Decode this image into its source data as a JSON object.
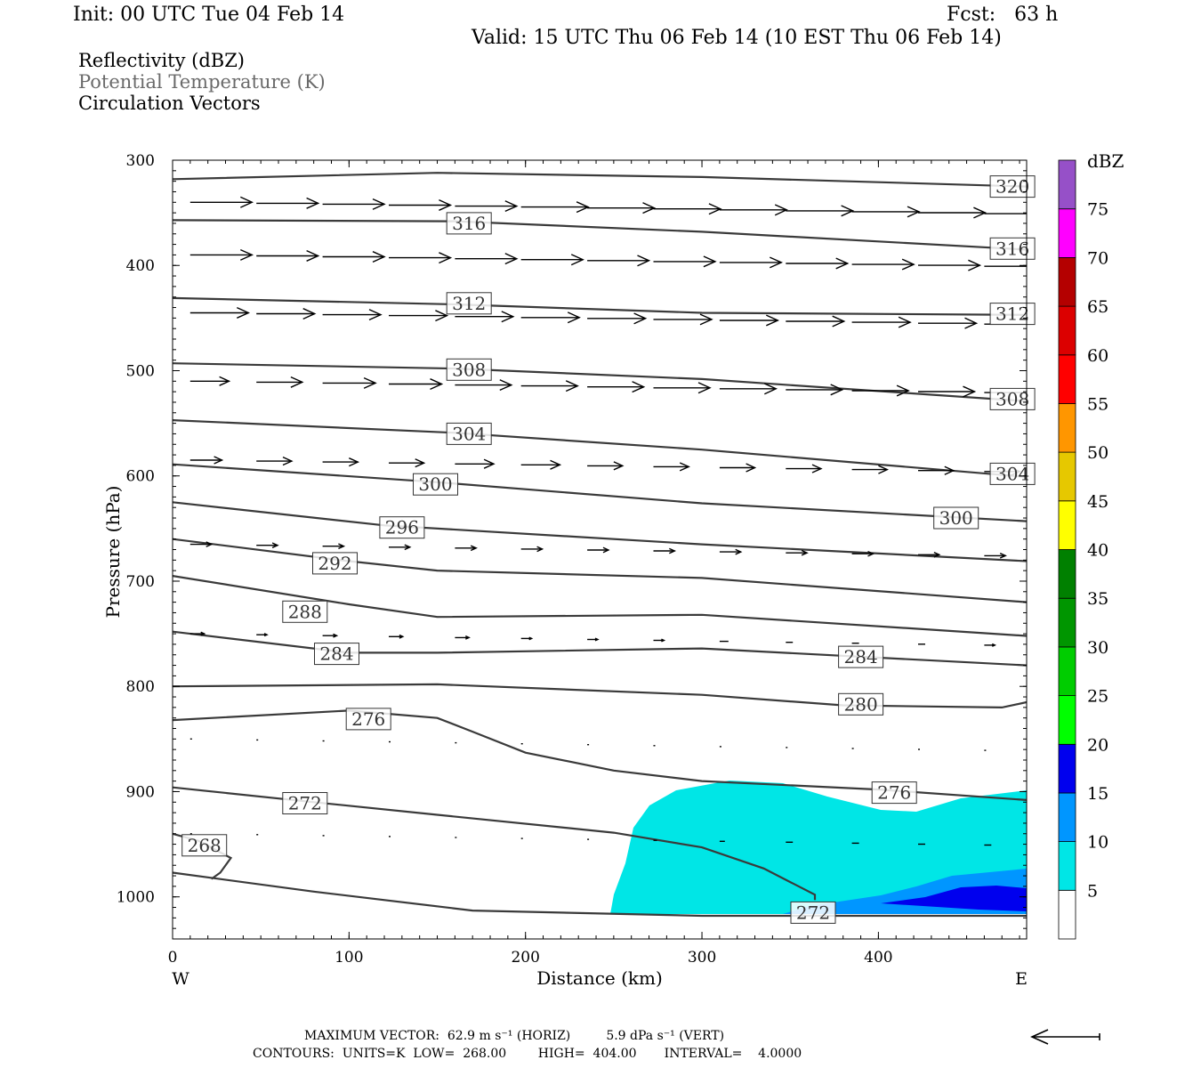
{
  "header": {
    "init": "Init: 00 UTC Tue 04 Feb 14",
    "fcst": "Fcst:   63 h",
    "valid": "Valid: 15 UTC Thu 06 Feb 14 (10 EST Thu 06 Feb 14)"
  },
  "fields": [
    "Reflectivity (dBZ)",
    "Potential Temperature (K)",
    "Circulation Vectors"
  ],
  "footer": {
    "line1": "MAXIMUM VECTOR:  62.9 m s⁻¹ (HORIZ)         5.9 dPa s⁻¹ (VERT)",
    "line2": "CONTOURS:  UNITS=K  LOW=  268.00        HIGH=  404.00       INTERVAL=    4.0000"
  },
  "colors": {
    "contour": "#3a3a3a",
    "c5": "#00e6e6",
    "c10": "#0096ff",
    "c15": "#0000ee"
  },
  "chart_data": {
    "type": "contour",
    "xlabel": "Distance (km)",
    "ylabel": "Pressure (hPa)",
    "xlim": [
      0,
      484
    ],
    "ylim": [
      1040,
      300
    ],
    "x_ticks": [
      0,
      100,
      200,
      300,
      400
    ],
    "y_ticks": [
      300,
      400,
      500,
      600,
      700,
      800,
      900,
      1000
    ],
    "x_end_labels": {
      "left": "W",
      "right": "E"
    },
    "colorbar": {
      "label": "dBZ",
      "levels": [
        5,
        10,
        15,
        20,
        25,
        30,
        35,
        40,
        45,
        50,
        55,
        60,
        65,
        70,
        75
      ],
      "colors": [
        "#00e6e6",
        "#0096ff",
        "#0000ee",
        "#00ff00",
        "#00cd00",
        "#009600",
        "#008000",
        "#ffff00",
        "#e6c800",
        "#ff9600",
        "#ff0000",
        "#dc0000",
        "#b40000",
        "#ff00ff",
        "#9650c8"
      ]
    },
    "theta_contours": [
      {
        "label": "320",
        "points": [
          [
            0,
            318
          ],
          [
            150,
            312
          ],
          [
            300,
            316
          ],
          [
            484,
            325
          ]
        ],
        "label_at": [
          [
            476,
            325
          ]
        ]
      },
      {
        "label": "316",
        "points": [
          [
            0,
            357
          ],
          [
            160,
            358
          ],
          [
            300,
            368
          ],
          [
            484,
            385
          ]
        ],
        "label_at": [
          [
            168,
            360
          ],
          [
            476,
            384
          ]
        ]
      },
      {
        "label": "312",
        "points": [
          [
            0,
            431
          ],
          [
            160,
            437
          ],
          [
            300,
            445
          ],
          [
            484,
            447
          ]
        ],
        "label_at": [
          [
            168,
            436
          ],
          [
            476,
            446
          ]
        ]
      },
      {
        "label": "308",
        "points": [
          [
            0,
            493
          ],
          [
            160,
            498
          ],
          [
            300,
            508
          ],
          [
            484,
            529
          ]
        ],
        "label_at": [
          [
            168,
            499
          ],
          [
            476,
            527
          ]
        ]
      },
      {
        "label": "304",
        "points": [
          [
            0,
            547
          ],
          [
            160,
            559
          ],
          [
            300,
            575
          ],
          [
            484,
            601
          ]
        ],
        "label_at": [
          [
            168,
            560
          ],
          [
            476,
            598
          ]
        ]
      },
      {
        "label": "300",
        "points": [
          [
            0,
            589
          ],
          [
            150,
            606
          ],
          [
            300,
            626
          ],
          [
            484,
            643
          ]
        ],
        "label_at": [
          [
            149,
            608
          ],
          [
            444,
            640
          ]
        ]
      },
      {
        "label": "296",
        "points": [
          [
            0,
            625
          ],
          [
            120,
            647
          ],
          [
            300,
            665
          ],
          [
            484,
            681
          ]
        ],
        "label_at": [
          [
            130,
            649
          ]
        ]
      },
      {
        "label": "292",
        "points": [
          [
            0,
            660
          ],
          [
            100,
            681
          ],
          [
            150,
            690
          ],
          [
            300,
            697
          ],
          [
            484,
            720
          ]
        ],
        "label_at": [
          [
            92,
            683
          ]
        ]
      },
      {
        "label": "288",
        "points": [
          [
            0,
            695
          ],
          [
            100,
            722
          ],
          [
            150,
            734
          ],
          [
            300,
            732
          ],
          [
            484,
            752
          ]
        ],
        "label_at": [
          [
            75,
            729
          ]
        ]
      },
      {
        "label": "284",
        "points": [
          [
            0,
            748
          ],
          [
            100,
            768
          ],
          [
            150,
            768
          ],
          [
            300,
            764
          ],
          [
            484,
            780
          ]
        ],
        "label_at": [
          [
            93,
            769
          ],
          [
            390,
            772
          ]
        ]
      },
      {
        "label": "280",
        "points": [
          [
            0,
            800
          ],
          [
            150,
            798
          ],
          [
            300,
            808
          ],
          [
            380,
            818
          ],
          [
            470,
            820
          ],
          [
            484,
            815
          ]
        ],
        "label_at": [
          [
            390,
            817
          ]
        ]
      },
      {
        "label": "276",
        "points": [
          [
            0,
            832
          ],
          [
            100,
            823
          ],
          [
            150,
            830
          ],
          [
            170,
            843
          ],
          [
            200,
            863
          ],
          [
            250,
            880
          ],
          [
            300,
            890
          ],
          [
            400,
            898
          ],
          [
            484,
            908
          ]
        ],
        "label_at": [
          [
            111,
            831
          ],
          [
            409,
            901
          ]
        ]
      },
      {
        "label": "272",
        "points": [
          [
            0,
            896
          ],
          [
            80,
            910
          ],
          [
            150,
            922
          ],
          [
            250,
            939
          ],
          [
            300,
            953
          ],
          [
            335,
            973
          ],
          [
            364,
            998
          ],
          [
            364,
            1003
          ]
        ],
        "label_at": [
          [
            75,
            911
          ],
          [
            363,
            1015
          ]
        ]
      },
      {
        "label": "268",
        "points": [
          [
            0,
            940
          ],
          [
            15,
            947
          ],
          [
            33,
            963
          ],
          [
            27,
            977
          ],
          [
            22,
            983
          ]
        ],
        "label_at": [
          [
            18,
            951
          ]
        ]
      },
      {
        "label": "",
        "points": [
          [
            0,
            977
          ],
          [
            80,
            995
          ],
          [
            170,
            1013
          ],
          [
            300,
            1018
          ],
          [
            484,
            1018
          ]
        ],
        "label_at": []
      }
    ],
    "reflectivity_regions": [
      {
        "dbz_min": 5,
        "label": "5"
      },
      {
        "dbz_min": 10,
        "label": "10"
      },
      {
        "dbz_min": 15,
        "label": "15"
      }
    ],
    "vector_rows_hpa": [
      340,
      390,
      445,
      510,
      585,
      665,
      750,
      850,
      940
    ],
    "vector_lengths_km": [
      [
        35,
        35,
        35,
        35,
        35,
        38,
        38,
        38,
        38,
        38,
        38,
        38,
        38,
        38
      ],
      [
        35,
        35,
        35,
        35,
        35,
        35,
        35,
        35,
        35,
        35,
        35,
        35,
        35,
        35
      ],
      [
        33,
        33,
        33,
        33,
        33,
        33,
        33,
        33,
        33,
        33,
        33,
        33,
        33,
        33
      ],
      [
        22,
        26,
        30,
        30,
        32,
        32,
        32,
        32,
        32,
        32,
        32,
        32,
        32,
        22
      ],
      [
        18,
        20,
        20,
        20,
        22,
        22,
        20,
        20,
        20,
        20,
        20,
        20,
        20,
        20
      ],
      [
        12,
        12,
        12,
        12,
        12,
        12,
        12,
        12,
        12,
        12,
        12,
        12,
        12,
        12
      ],
      [
        8,
        6,
        8,
        8,
        8,
        6,
        6,
        6,
        5,
        4,
        4,
        4,
        6,
        6
      ],
      [
        1,
        1,
        1,
        1,
        1,
        1,
        1,
        1,
        1,
        1,
        1,
        1,
        1,
        1
      ],
      [
        1,
        1,
        1,
        1,
        1,
        1,
        1,
        2,
        3,
        4,
        4,
        4,
        4,
        4
      ]
    ],
    "reference_vector": "left-pointing arrow"
  }
}
